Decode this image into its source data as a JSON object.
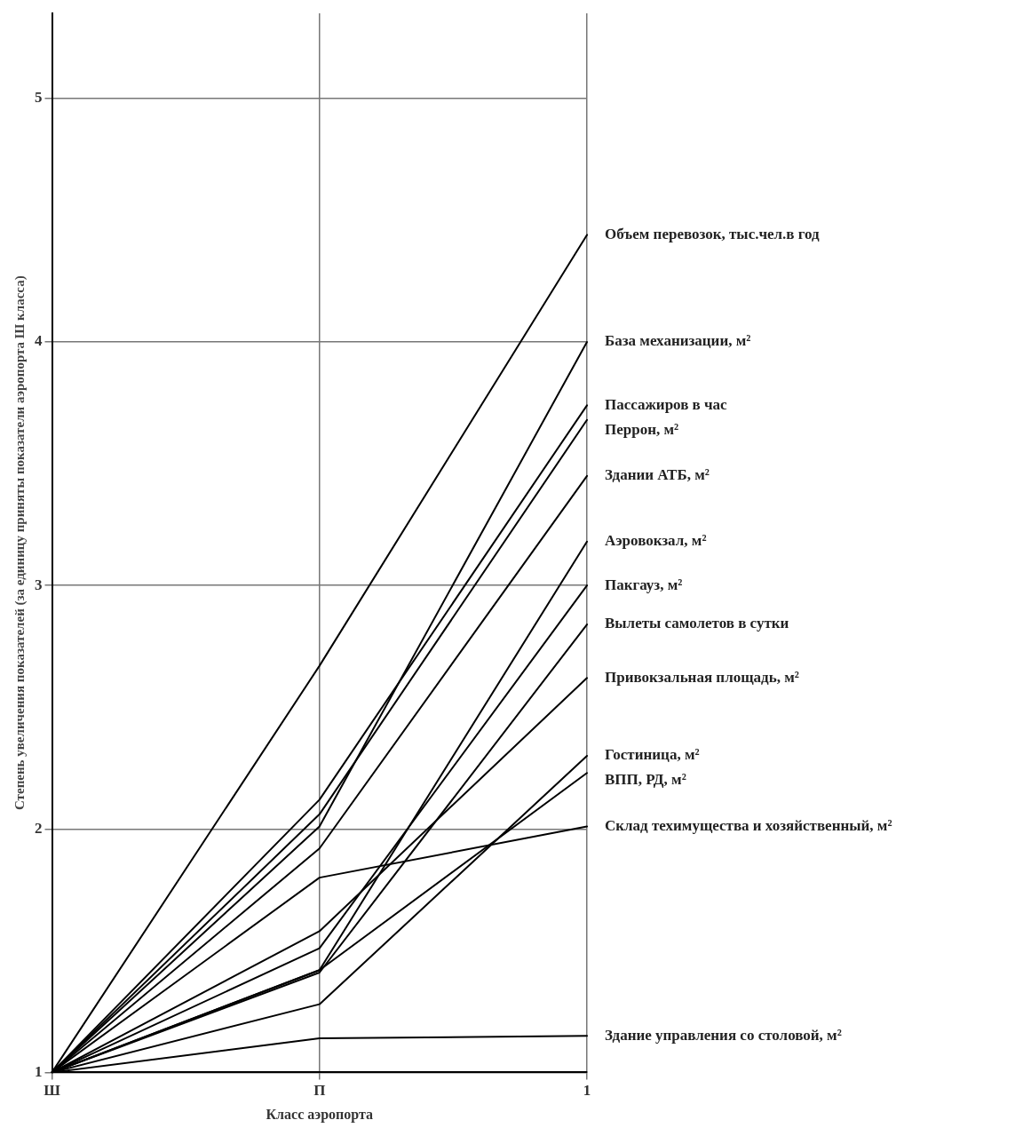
{
  "chart_data": {
    "type": "line",
    "xlabel": "Класс аэропорта",
    "ylabel": "Степень увеличения показателей (за единицу приняты показатели аэропорта Ш класса)",
    "categories": [
      "Ш",
      "П",
      "1"
    ],
    "ylim": [
      1,
      5.35
    ],
    "yticks": [
      1,
      2,
      3,
      4,
      5
    ],
    "grid": true,
    "legend": false,
    "marker": "none",
    "line_style": "solid",
    "series": [
      {
        "name": "Объем перевозок, тыс.чел.в год",
        "color": "#000000",
        "values": [
          1,
          2.67,
          4.44
        ]
      },
      {
        "name": "База механизации, м²",
        "color": "#000000",
        "values": [
          1,
          2.01,
          4.0
        ]
      },
      {
        "name": "Пассажиров в час",
        "color": "#000000",
        "values": [
          1,
          2.12,
          3.74
        ]
      },
      {
        "name": "Перрон, м²",
        "color": "#000000",
        "values": [
          1,
          2.06,
          3.68
        ]
      },
      {
        "name": "Здании АТБ, м²",
        "color": "#000000",
        "values": [
          1,
          1.92,
          3.45
        ]
      },
      {
        "name": "Аэровокзал, м²",
        "color": "#000000",
        "values": [
          1,
          1.42,
          3.18
        ]
      },
      {
        "name": "Пакгауз, м²",
        "color": "#000000",
        "values": [
          1,
          1.51,
          3.0
        ]
      },
      {
        "name": "Вылеты самолетов в сутки",
        "color": "#000000",
        "values": [
          1,
          1.41,
          2.84
        ]
      },
      {
        "name": "Привокзальная площадь, м²",
        "color": "#000000",
        "values": [
          1,
          1.58,
          2.62
        ]
      },
      {
        "name": "Гостиница, м²",
        "color": "#000000",
        "values": [
          1,
          1.28,
          2.3
        ]
      },
      {
        "name": "ВПП, РД, м²",
        "color": "#000000",
        "values": [
          1,
          1.42,
          2.23
        ]
      },
      {
        "name": "Склад техимущества и хозяйственный, м²",
        "color": "#000000",
        "values": [
          1,
          1.8,
          2.01
        ]
      },
      {
        "name": "Здание управления со столовой, м²",
        "color": "#000000",
        "values": [
          1,
          1.14,
          1.15
        ]
      }
    ]
  }
}
